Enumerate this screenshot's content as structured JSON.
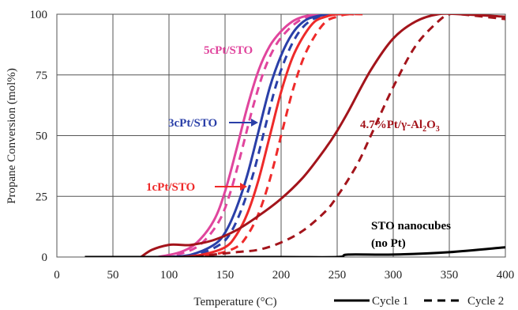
{
  "chart_data": {
    "type": "line",
    "title": "",
    "xlabel": "Temperature (°C)",
    "ylabel": "Propane Conversion (mol%)",
    "xlim": [
      0,
      400
    ],
    "ylim": [
      0,
      100
    ],
    "x_ticks": [
      0,
      50,
      100,
      150,
      200,
      250,
      300,
      350,
      400
    ],
    "y_ticks": [
      0,
      25,
      50,
      75,
      100
    ],
    "grid": true,
    "legend": {
      "placement": "bottom-right",
      "entries": [
        {
          "label": "Cycle 1",
          "style": "solid"
        },
        {
          "label": "Cycle 2",
          "style": "dashed"
        }
      ]
    },
    "annotations": [
      {
        "text": "5cPt/STO",
        "color": "#e0459d"
      },
      {
        "text": "3cPt/STO",
        "color": "#2a3fa8"
      },
      {
        "text": "1cPt/STO",
        "color": "#ee2a2a"
      },
      {
        "text": "4.7%Pt/γ-Al",
        "sub": "2",
        "text2": "O",
        "sub2": "3",
        "color": "#a3141b"
      },
      {
        "text": "STO nanocubes",
        "color": "#000000"
      },
      {
        "text": "(no Pt)",
        "color": "#000000"
      }
    ],
    "series": [
      {
        "color": "#e0459d",
        "style": "solid",
        "x": [
          90,
          110,
          125,
          140,
          150,
          160,
          170,
          180,
          190,
          200,
          210,
          220,
          235,
          250
        ],
        "y": [
          0,
          2,
          6,
          15,
          27,
          44,
          62,
          77,
          87,
          93,
          97,
          99,
          100,
          100
        ]
      },
      {
        "color": "#e0459d",
        "style": "dashed",
        "x": [
          95,
          115,
          130,
          145,
          155,
          165,
          175,
          185,
          195,
          205,
          215,
          225,
          240,
          255
        ],
        "y": [
          0,
          2,
          6,
          15,
          27,
          44,
          62,
          77,
          87,
          93,
          97,
          99,
          100,
          100
        ]
      },
      {
        "color": "#2a3fa8",
        "style": "solid",
        "x": [
          100,
          120,
          140,
          150,
          160,
          170,
          180,
          190,
          200,
          210,
          220,
          230,
          245,
          260
        ],
        "y": [
          0,
          1,
          5,
          10,
          20,
          34,
          52,
          70,
          83,
          92,
          97,
          99,
          100,
          100
        ]
      },
      {
        "color": "#2a3fa8",
        "style": "dashed",
        "x": [
          105,
          125,
          145,
          155,
          165,
          175,
          185,
          195,
          205,
          215,
          225,
          235,
          250,
          265
        ],
        "y": [
          0,
          1,
          5,
          10,
          20,
          34,
          52,
          70,
          83,
          92,
          97,
          99,
          100,
          100
        ]
      },
      {
        "color": "#ee2a2a",
        "style": "solid",
        "x": [
          110,
          130,
          150,
          160,
          170,
          180,
          190,
          200,
          210,
          220,
          230,
          240,
          250,
          265
        ],
        "y": [
          0,
          1,
          4,
          9,
          18,
          32,
          50,
          68,
          82,
          91,
          97,
          99,
          100,
          100
        ]
      },
      {
        "color": "#ee2a2a",
        "style": "dashed",
        "x": [
          120,
          140,
          160,
          170,
          180,
          190,
          200,
          210,
          220,
          230,
          240,
          250,
          260,
          275
        ],
        "y": [
          0,
          1,
          4,
          9,
          18,
          32,
          50,
          68,
          82,
          91,
          97,
          99,
          100,
          100
        ]
      },
      {
        "color": "#a3141b",
        "style": "solid",
        "x": [
          75,
          85,
          100,
          110,
          120,
          140,
          160,
          180,
          200,
          220,
          240,
          250,
          260,
          280,
          300,
          320,
          340,
          360,
          400
        ],
        "y": [
          0,
          3,
          5,
          5,
          5,
          7,
          11,
          17,
          24,
          33,
          45,
          52,
          60,
          77,
          90,
          97,
          100,
          100,
          99
        ]
      },
      {
        "color": "#a3141b",
        "style": "dashed",
        "x": [
          100,
          120,
          140,
          160,
          180,
          200,
          220,
          240,
          250,
          260,
          270,
          280,
          300,
          320,
          340,
          350,
          360,
          400
        ],
        "y": [
          0,
          0,
          1,
          2,
          3,
          6,
          11,
          19,
          25,
          32,
          40,
          50,
          70,
          87,
          97,
          100,
          100,
          98
        ]
      },
      {
        "color": "#000000",
        "style": "solid",
        "x": [
          25,
          100,
          200,
          250,
          260,
          300,
          350,
          400
        ],
        "y": [
          0,
          0,
          0,
          0,
          1,
          1,
          2,
          4
        ]
      }
    ]
  }
}
